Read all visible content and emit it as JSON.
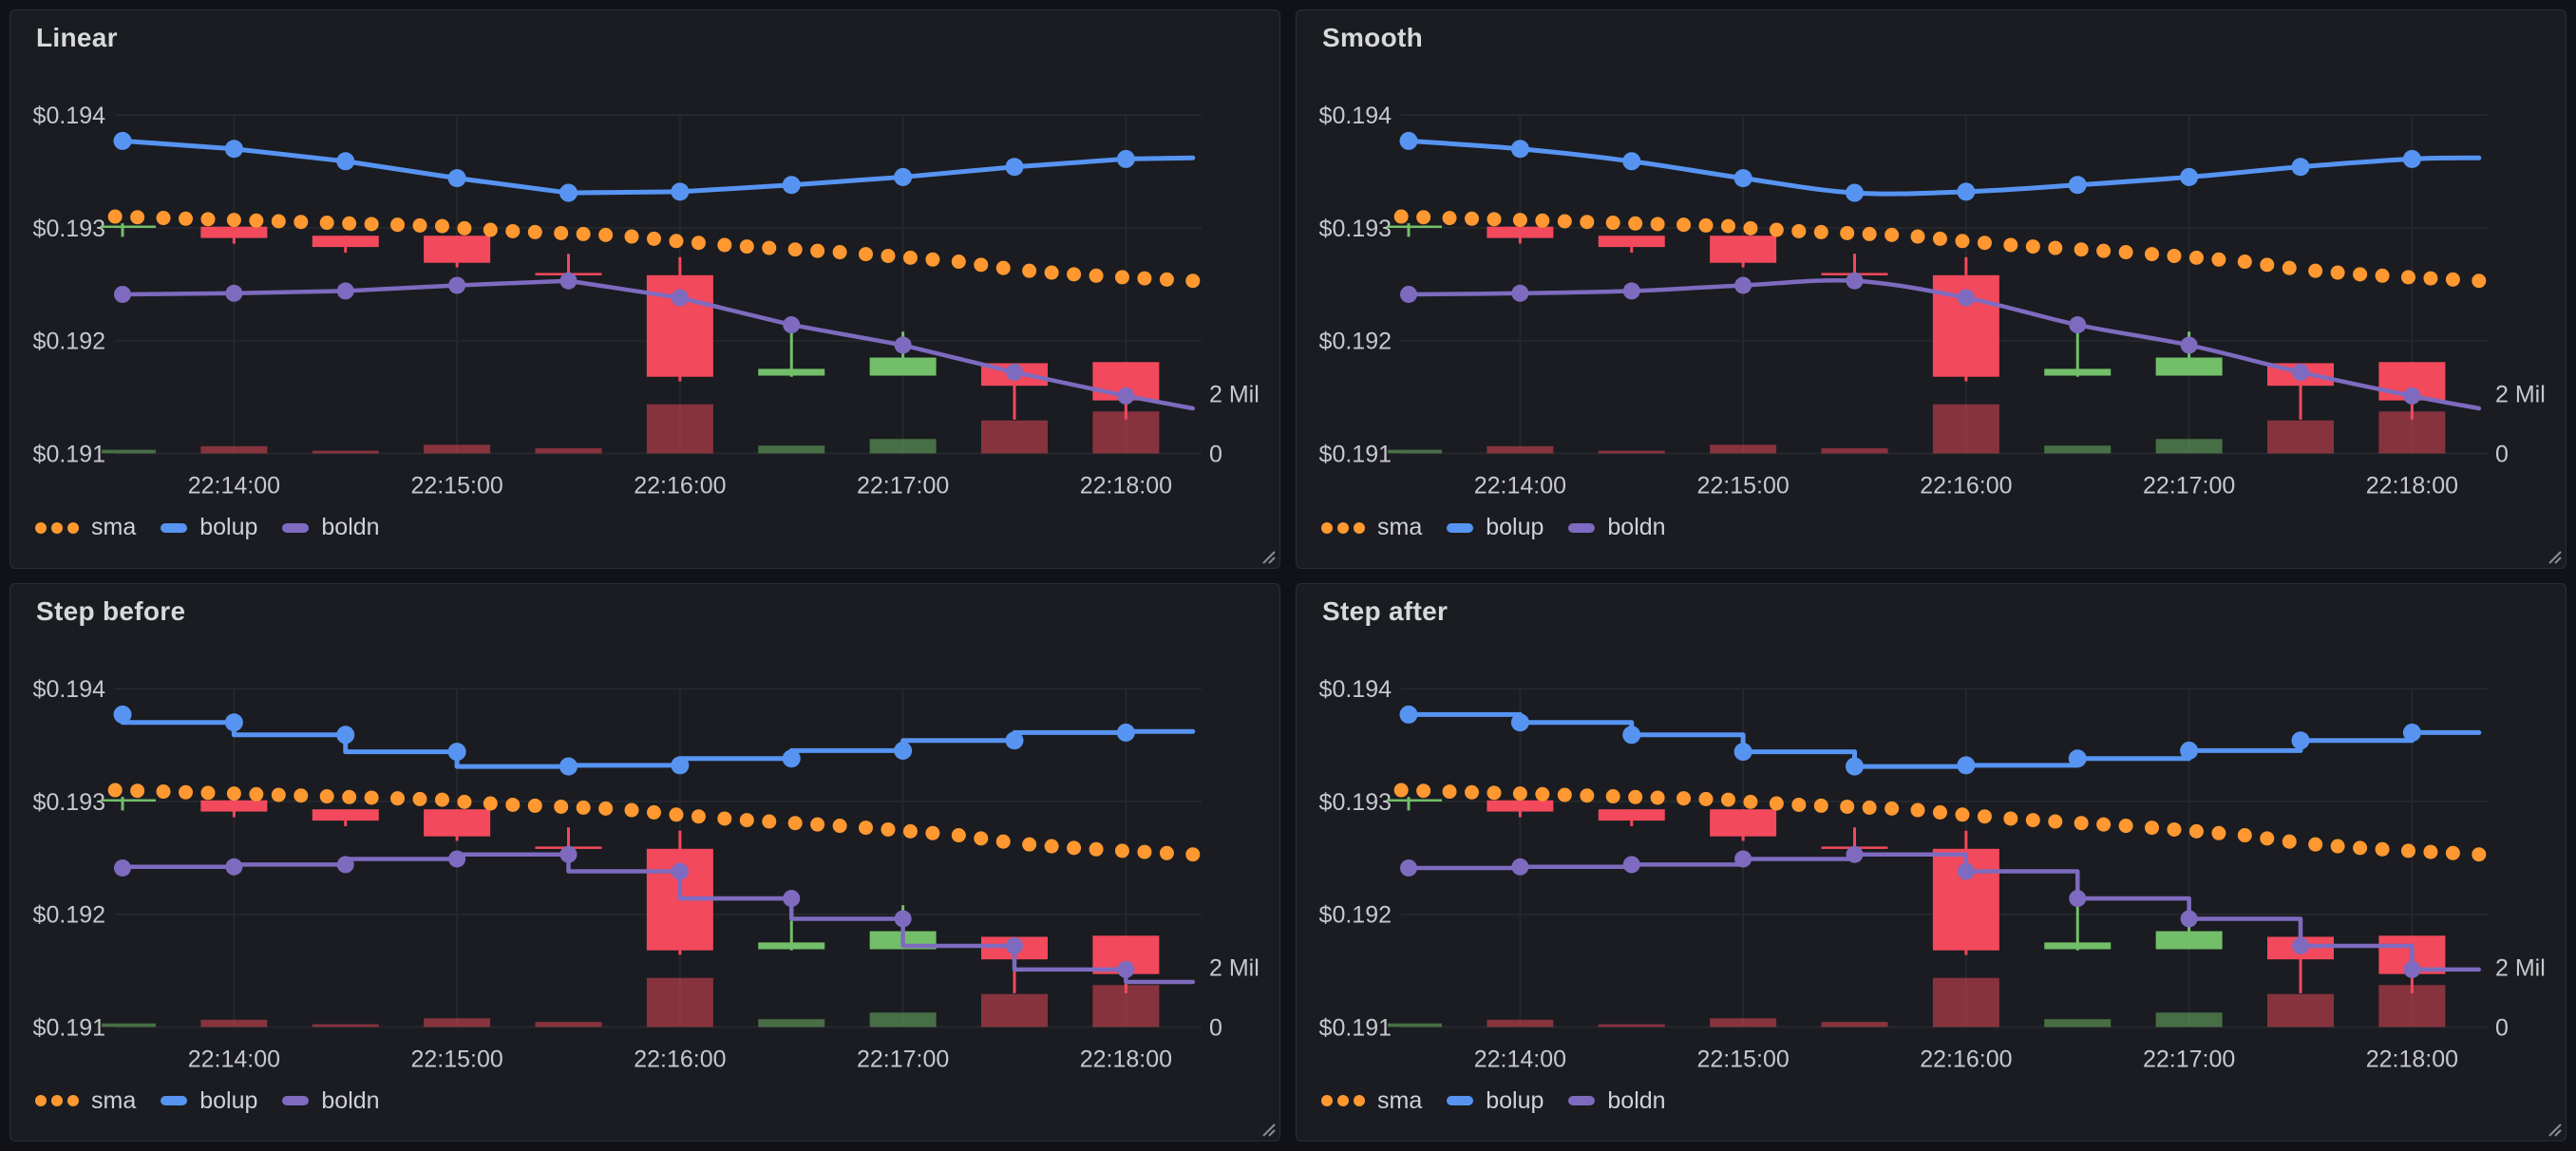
{
  "page": {
    "background": "#111217",
    "panel_background": "#1a1c21"
  },
  "panels": [
    {
      "title": "Linear",
      "interpolation": "linear"
    },
    {
      "title": "Smooth",
      "interpolation": "smooth"
    },
    {
      "title": "Step before",
      "interpolation": "step-before"
    },
    {
      "title": "Step after",
      "interpolation": "step-after"
    }
  ],
  "legend": [
    {
      "label": "sma",
      "color": "#FF9830",
      "style": "dots"
    },
    {
      "label": "bolup",
      "color": "#5794F2",
      "style": "line"
    },
    {
      "label": "boldn",
      "color": "#7E6BBF",
      "style": "line"
    }
  ],
  "chart_data": {
    "type": "candlestick",
    "shared_across_panels": true,
    "x_axis": {
      "tick_labels": [
        "22:14:00",
        "22:15:00",
        "22:16:00",
        "22:17:00",
        "22:18:00"
      ],
      "tick_times_s": [
        30,
        90,
        150,
        210,
        270
      ],
      "seconds_per_candle": 30
    },
    "y_axis": {
      "tick_labels": [
        "$0.194",
        "$0.193",
        "$0.192",
        "$0.191"
      ],
      "tick_values": [
        0.194,
        0.193,
        0.192,
        0.191
      ]
    },
    "volume_axis": {
      "tick_labels": [
        "2 Mil",
        "0"
      ],
      "tick_values": [
        2,
        0
      ],
      "unit": "Mil"
    },
    "candles": [
      {
        "t": 0,
        "o": 0.193,
        "h": 0.19304,
        "l": 0.19292,
        "c": 0.19302,
        "volume_mil": 0.12
      },
      {
        "t": 30,
        "o": 0.19301,
        "h": 0.19301,
        "l": 0.19286,
        "c": 0.19291,
        "volume_mil": 0.24
      },
      {
        "t": 60,
        "o": 0.19293,
        "h": 0.19293,
        "l": 0.19278,
        "c": 0.19283,
        "volume_mil": 0.09
      },
      {
        "t": 90,
        "o": 0.19293,
        "h": 0.19293,
        "l": 0.19265,
        "c": 0.19269,
        "volume_mil": 0.29
      },
      {
        "t": 120,
        "o": 0.1926,
        "h": 0.19277,
        "l": 0.19247,
        "c": 0.19258,
        "volume_mil": 0.17
      },
      {
        "t": 150,
        "o": 0.19258,
        "h": 0.19274,
        "l": 0.19164,
        "c": 0.19168,
        "volume_mil": 1.64
      },
      {
        "t": 180,
        "o": 0.19169,
        "h": 0.19208,
        "l": 0.19168,
        "c": 0.19175,
        "volume_mil": 0.26
      },
      {
        "t": 210,
        "o": 0.19169,
        "h": 0.19208,
        "l": 0.19169,
        "c": 0.19185,
        "volume_mil": 0.48
      },
      {
        "t": 240,
        "o": 0.1918,
        "h": 0.1918,
        "l": 0.1913,
        "c": 0.1916,
        "volume_mil": 1.1
      },
      {
        "t": 270,
        "o": 0.19181,
        "h": 0.19181,
        "l": 0.1913,
        "c": 0.19147,
        "volume_mil": 1.4
      }
    ],
    "series": [
      {
        "name": "sma",
        "color": "#FF9830",
        "style": "points",
        "points": [
          [
            -2,
            0.1931
          ],
          [
            4,
            0.193094
          ],
          [
            11,
            0.193087
          ],
          [
            17,
            0.193081
          ],
          [
            23,
            0.193076
          ],
          [
            30,
            0.19307
          ],
          [
            36,
            0.193064
          ],
          [
            42,
            0.193058
          ],
          [
            48,
            0.193052
          ],
          [
            55,
            0.193045
          ],
          [
            61,
            0.193039
          ],
          [
            67,
            0.193033
          ],
          [
            74,
            0.193027
          ],
          [
            80,
            0.193021
          ],
          [
            86,
            0.193015
          ],
          [
            92,
            0.192996
          ],
          [
            99,
            0.192982
          ],
          [
            105,
            0.19297
          ],
          [
            111,
            0.192962
          ],
          [
            118,
            0.192953
          ],
          [
            124,
            0.192945
          ],
          [
            130,
            0.192937
          ],
          [
            137,
            0.192923
          ],
          [
            143,
            0.192903
          ],
          [
            149,
            0.192883
          ],
          [
            155,
            0.192867
          ],
          [
            162,
            0.192848
          ],
          [
            168,
            0.192834
          ],
          [
            174,
            0.192822
          ],
          [
            181,
            0.192808
          ],
          [
            187,
            0.192796
          ],
          [
            193,
            0.192784
          ],
          [
            200,
            0.192767
          ],
          [
            206,
            0.192751
          ],
          [
            212,
            0.192735
          ],
          [
            218,
            0.192719
          ],
          [
            225,
            0.1927
          ],
          [
            231,
            0.192672
          ],
          [
            237,
            0.192644
          ],
          [
            244,
            0.192619
          ],
          [
            250,
            0.192603
          ],
          [
            256,
            0.192588
          ],
          [
            262,
            0.192576
          ],
          [
            269,
            0.192562
          ],
          [
            275,
            0.192552
          ],
          [
            281,
            0.192542
          ],
          [
            288,
            0.19253
          ]
        ]
      },
      {
        "name": "bolup",
        "color": "#5794F2",
        "style": "line-markers",
        "points": [
          [
            0,
            0.19377
          ],
          [
            30,
            0.1937
          ],
          [
            60,
            0.19359
          ],
          [
            90,
            0.19344
          ],
          [
            120,
            0.19331
          ],
          [
            150,
            0.19332
          ],
          [
            180,
            0.19338
          ],
          [
            210,
            0.19345
          ],
          [
            240,
            0.19354
          ],
          [
            270,
            0.19361
          ],
          [
            288,
            0.19362
          ]
        ]
      },
      {
        "name": "boldn",
        "color": "#7E6BBF",
        "style": "line-markers",
        "points": [
          [
            0,
            0.19241
          ],
          [
            30,
            0.19242
          ],
          [
            60,
            0.19244
          ],
          [
            90,
            0.19249
          ],
          [
            120,
            0.19253
          ],
          [
            150,
            0.19238
          ],
          [
            180,
            0.19214
          ],
          [
            210,
            0.19196
          ],
          [
            240,
            0.19172
          ],
          [
            270,
            0.19151
          ],
          [
            288,
            0.1914
          ]
        ]
      }
    ],
    "colors": {
      "up": "#73BF69",
      "down": "#F2495C",
      "volume_up": "rgba(115,191,105,0.5)",
      "volume_down": "rgba(242,73,92,0.5)",
      "grid": "#25272d",
      "axis_text": "#c7c8cd"
    }
  }
}
